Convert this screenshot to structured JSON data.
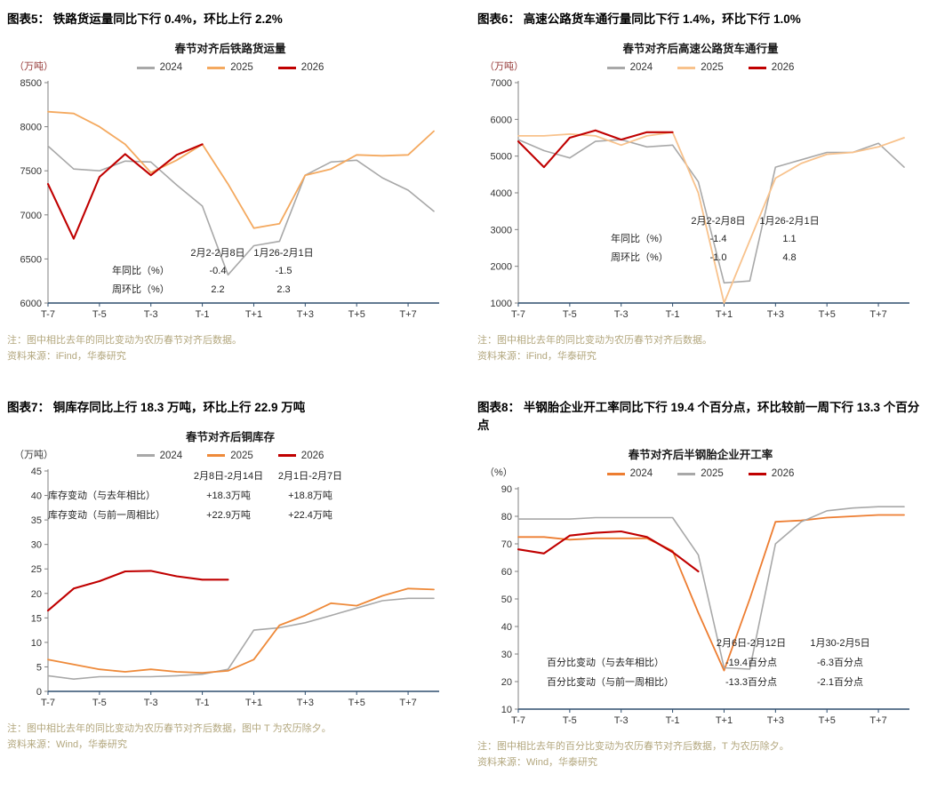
{
  "panels": [
    {
      "caption": "图表5：  铁路货运量同比下行 0.4%，环比上行 2.2%",
      "unit": "（万吨）",
      "unit_color": "#943634",
      "note": "注：图中相比去年的同比变动为农历春节对齐后数据。",
      "source": "资料来源：iFind，华泰研究",
      "annotation": {
        "headers": [
          "2月2-2月8日",
          "1月26-2月1日"
        ],
        "rows": [
          {
            "label": "年同比（%）",
            "v1": "-0.4",
            "v2": "-1.5"
          },
          {
            "label": "周环比（%）",
            "v1": "2.2",
            "v2": "2.3"
          }
        ]
      }
    },
    {
      "caption": "图表6：  高速公路货车通行量同比下行 1.4%，环比下行 1.0%",
      "unit": "（万吨）",
      "unit_color": "#943634",
      "note": "注：图中相比去年的同比变动为农历春节对齐后数据。",
      "source": "资料来源：iFind，华泰研究",
      "annotation": {
        "headers": [
          "2月2-2月8日",
          "1月26-2月1日"
        ],
        "rows": [
          {
            "label": "年同比（%）",
            "v1": "-1.4",
            "v2": "1.1"
          },
          {
            "label": "周环比（%）",
            "v1": "-1.0",
            "v2": "4.8"
          }
        ]
      }
    },
    {
      "caption": "图表7：  铜库存同比上行 18.3 万吨，环比上行 22.9 万吨",
      "unit": "（万吨）",
      "unit_color": "#333333",
      "note": "注：图中相比去年的同比变动为农历春节对齐后数据，图中 T 为农历除夕。",
      "source": "资料来源：Wind，华泰研究",
      "annotation": {
        "headers": [
          "2月8日-2月14日",
          "2月1日-2月7日"
        ],
        "rows": [
          {
            "label": "库存变动（与去年相比）",
            "v1": "+18.3万吨",
            "v2": "+18.8万吨"
          },
          {
            "label": "库存变动（与前一周相比）",
            "v1": "+22.9万吨",
            "v2": "+22.4万吨"
          }
        ]
      }
    },
    {
      "caption": "图表8：  半钢胎企业开工率同比下行 19.4 个百分点，环比较前一周下行 13.3 个百分点",
      "unit": "（%）",
      "unit_color": "#333333",
      "note": "注：图中相比去年的百分比变动为农历春节对齐后数据，T 为农历除夕。",
      "source": "资料来源：Wind，华泰研究",
      "annotation": {
        "headers": [
          "2月6日-2月12日",
          "1月30-2月5日"
        ],
        "rows": [
          {
            "label": "百分比变动（与去年相比）",
            "v1": "-19.4百分点",
            "v2": "-6.3百分点"
          },
          {
            "label": "百分比变动（与前一周相比）",
            "v1": "-13.3百分点",
            "v2": "-2.1百分点"
          }
        ]
      }
    }
  ],
  "chart_data": [
    {
      "type": "line",
      "title": "春节对齐后铁路货运量",
      "ylabel": "万吨",
      "n_points": 16,
      "x_tick_labels": [
        "T-7",
        "T-5",
        "T-3",
        "T-1",
        "T+1",
        "T+3",
        "T+5",
        "T+7"
      ],
      "ylim": [
        6000,
        8500
      ],
      "y_ticks": [
        6000,
        6500,
        7000,
        7500,
        8000,
        8500
      ],
      "series": [
        {
          "name": "2024",
          "color": "#A8A8A8",
          "width": 1.6,
          "values": [
            7780,
            7520,
            7500,
            7610,
            7600,
            7340,
            7100,
            6320,
            6650,
            6700,
            7450,
            7600,
            7620,
            7420,
            7280,
            7040
          ]
        },
        {
          "name": "2025",
          "color": "#F4A95F",
          "width": 1.8,
          "values": [
            8170,
            8150,
            8000,
            7800,
            7480,
            7620,
            7800,
            7350,
            6850,
            6900,
            7450,
            7520,
            7680,
            7670,
            7680,
            7950
          ]
        },
        {
          "name": "2026",
          "color": "#C00000",
          "width": 2.1,
          "values": [
            7350,
            6730,
            7430,
            7690,
            7450,
            7680,
            7800,
            null,
            null,
            null,
            null,
            null,
            null,
            null,
            null,
            null
          ]
        }
      ]
    },
    {
      "type": "line",
      "title": "春节对齐后高速公路货车通行量",
      "ylabel": "万吨",
      "n_points": 16,
      "x_tick_labels": [
        "T-7",
        "T-5",
        "T-3",
        "T-1",
        "T+1",
        "T+3",
        "T+5",
        "T+7"
      ],
      "ylim": [
        1000,
        7000
      ],
      "y_ticks": [
        1000,
        2000,
        3000,
        4000,
        5000,
        6000,
        7000
      ],
      "series": [
        {
          "name": "2024",
          "color": "#A8A8A8",
          "width": 1.6,
          "values": [
            5450,
            5150,
            4950,
            5400,
            5450,
            5250,
            5300,
            4300,
            1550,
            1600,
            4700,
            4900,
            5100,
            5100,
            5350,
            4700
          ]
        },
        {
          "name": "2025",
          "color": "#F8C28C",
          "width": 1.8,
          "values": [
            5550,
            5550,
            5600,
            5550,
            5300,
            5550,
            5650,
            4000,
            1000,
            2700,
            4400,
            4800,
            5050,
            5100,
            5250,
            5500
          ]
        },
        {
          "name": "2026",
          "color": "#C00000",
          "width": 2.1,
          "values": [
            5400,
            4700,
            5500,
            5700,
            5450,
            5650,
            5650,
            null,
            null,
            null,
            null,
            null,
            null,
            null,
            null,
            null
          ]
        }
      ]
    },
    {
      "type": "line",
      "title": "春节对齐后铜库存",
      "ylabel": "万吨",
      "n_points": 16,
      "x_tick_labels": [
        "T-7",
        "T-5",
        "T-3",
        "T-1",
        "T+1",
        "T+3",
        "T+5",
        "T+7"
      ],
      "ylim": [
        0,
        45
      ],
      "y_ticks": [
        0,
        5,
        10,
        15,
        20,
        25,
        30,
        35,
        40,
        45
      ],
      "series": [
        {
          "name": "2024",
          "color": "#A8A8A8",
          "width": 1.6,
          "values": [
            3.2,
            2.5,
            3.0,
            3.0,
            3.0,
            3.2,
            3.5,
            4.5,
            12.5,
            13.0,
            14.0,
            15.5,
            17.0,
            18.5,
            19.0,
            19.0
          ]
        },
        {
          "name": "2025",
          "color": "#EE8A3A",
          "width": 1.8,
          "values": [
            6.5,
            5.5,
            4.5,
            4.0,
            4.5,
            4.0,
            3.8,
            4.2,
            6.5,
            13.5,
            15.5,
            18.0,
            17.5,
            19.5,
            21.0,
            20.8
          ]
        },
        {
          "name": "2026",
          "color": "#C00000",
          "width": 2.1,
          "values": [
            16.5,
            21.0,
            22.5,
            24.5,
            24.6,
            23.5,
            22.8,
            22.8,
            null,
            null,
            null,
            null,
            null,
            null,
            null,
            null
          ]
        }
      ]
    },
    {
      "type": "line",
      "title": "春节对齐后半钢胎企业开工率",
      "ylabel": "%",
      "n_points": 16,
      "x_tick_labels": [
        "T-7",
        "T-5",
        "T-3",
        "T-1",
        "T+1",
        "T+3",
        "T+5",
        "T+7"
      ],
      "ylim": [
        10,
        90
      ],
      "y_ticks": [
        10,
        20,
        30,
        40,
        50,
        60,
        70,
        80,
        90
      ],
      "series": [
        {
          "name": "2024",
          "color": "#ED7D31",
          "width": 1.8,
          "values": [
            72.5,
            72.5,
            71.5,
            72.0,
            72.0,
            72.0,
            67.5,
            45.0,
            24.0,
            50.0,
            78.0,
            78.5,
            79.5,
            80.0,
            80.5,
            80.5
          ]
        },
        {
          "name": "2025",
          "color": "#A8A8A8",
          "width": 1.6,
          "values": [
            79.0,
            79.0,
            79.0,
            79.5,
            79.5,
            79.5,
            79.5,
            66.0,
            25.0,
            24.5,
            70.0,
            78.0,
            82.0,
            83.0,
            83.5,
            83.5
          ]
        },
        {
          "name": "2026",
          "color": "#C00000",
          "width": 2.1,
          "values": [
            68.0,
            66.5,
            73.0,
            74.0,
            74.5,
            72.5,
            67.0,
            60.0,
            null,
            null,
            null,
            null,
            null,
            null,
            null,
            null
          ]
        }
      ]
    }
  ]
}
